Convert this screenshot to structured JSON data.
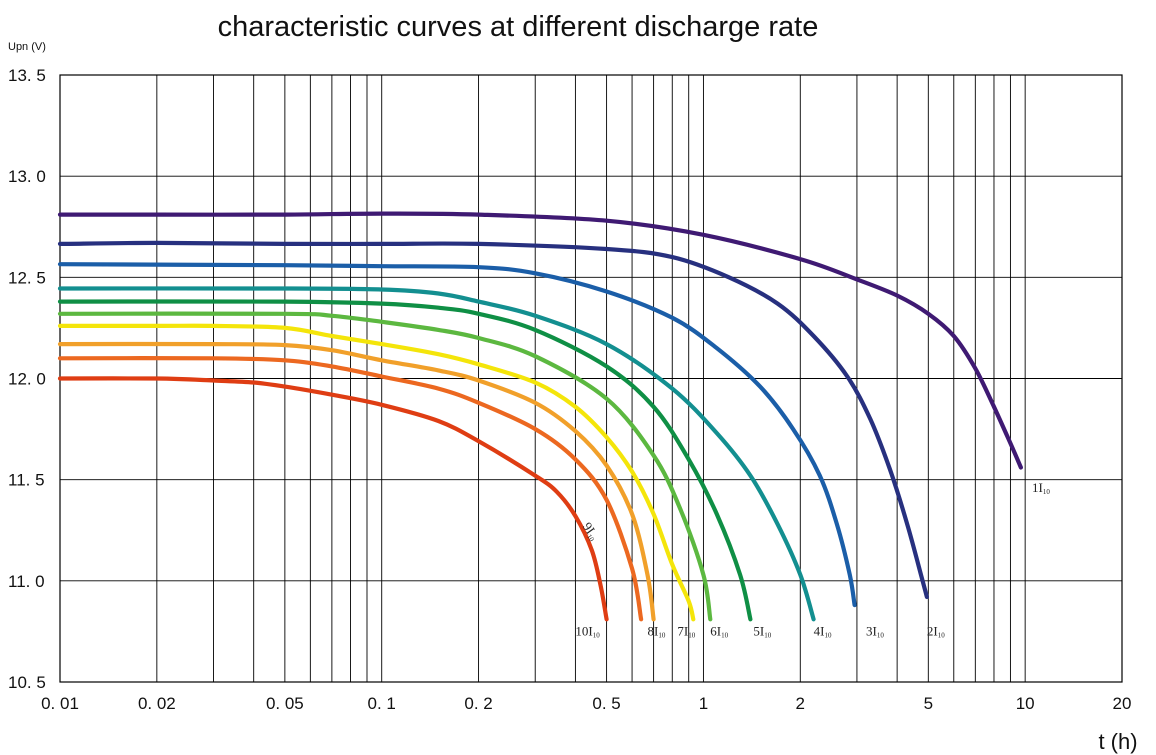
{
  "chart_data": {
    "type": "line",
    "title": "characteristic curves at different discharge rate",
    "ylabel": "Upn (V)",
    "xlabel": "t (h)",
    "x_scale": "log",
    "xlim": [
      0.01,
      20
    ],
    "ylim": [
      10.5,
      13.5
    ],
    "x_ticks": [
      0.01,
      0.02,
      0.05,
      0.1,
      0.2,
      0.5,
      1,
      2,
      5,
      10,
      20
    ],
    "x_tick_labels": [
      "0. 01",
      "0. 02",
      "0. 05",
      "0. 1",
      "0. 2",
      "0. 5",
      "1",
      "2",
      "5",
      "10",
      "20"
    ],
    "y_ticks": [
      10.5,
      11.0,
      11.5,
      12.0,
      12.5,
      13.0,
      13.5
    ],
    "y_tick_labels": [
      "10. 5",
      "11. 0",
      "11. 5",
      "12. 0",
      "12. 5",
      "13. 0",
      "13. 5"
    ],
    "grid": true,
    "series": [
      {
        "name": "1I10",
        "color": "#3f1a73",
        "label_pos": [
          10.5,
          11.44
        ],
        "points": [
          [
            0.01,
            12.81
          ],
          [
            0.02,
            12.81
          ],
          [
            0.05,
            12.81
          ],
          [
            0.1,
            12.815
          ],
          [
            0.2,
            12.81
          ],
          [
            0.5,
            12.78
          ],
          [
            1,
            12.71
          ],
          [
            2,
            12.59
          ],
          [
            3,
            12.49
          ],
          [
            4,
            12.41
          ],
          [
            5,
            12.32
          ],
          [
            6,
            12.21
          ],
          [
            7,
            12.05
          ],
          [
            8,
            11.86
          ],
          [
            9,
            11.68
          ],
          [
            9.7,
            11.56
          ]
        ]
      },
      {
        "name": "2I10",
        "color": "#27307f",
        "label_pos": [
          4.95,
          10.73
        ],
        "points": [
          [
            0.01,
            12.665
          ],
          [
            0.02,
            12.67
          ],
          [
            0.05,
            12.665
          ],
          [
            0.1,
            12.665
          ],
          [
            0.2,
            12.665
          ],
          [
            0.5,
            12.64
          ],
          [
            0.8,
            12.6
          ],
          [
            1.2,
            12.5
          ],
          [
            1.7,
            12.37
          ],
          [
            2.2,
            12.21
          ],
          [
            2.8,
            12.01
          ],
          [
            3.3,
            11.8
          ],
          [
            3.8,
            11.55
          ],
          [
            4.3,
            11.28
          ],
          [
            4.8,
            11.0
          ],
          [
            4.95,
            10.92
          ]
        ]
      },
      {
        "name": "3I10",
        "color": "#1b5ea8",
        "label_pos": [
          3.2,
          10.73
        ],
        "points": [
          [
            0.01,
            12.565
          ],
          [
            0.05,
            12.56
          ],
          [
            0.1,
            12.555
          ],
          [
            0.2,
            12.55
          ],
          [
            0.3,
            12.52
          ],
          [
            0.5,
            12.43
          ],
          [
            0.8,
            12.3
          ],
          [
            1.1,
            12.15
          ],
          [
            1.5,
            11.96
          ],
          [
            1.9,
            11.75
          ],
          [
            2.3,
            11.52
          ],
          [
            2.6,
            11.28
          ],
          [
            2.85,
            11.03
          ],
          [
            2.95,
            10.88
          ]
        ]
      },
      {
        "name": "4I10",
        "color": "#138f90",
        "label_pos": [
          2.2,
          10.73
        ],
        "points": [
          [
            0.01,
            12.445
          ],
          [
            0.05,
            12.445
          ],
          [
            0.1,
            12.44
          ],
          [
            0.15,
            12.42
          ],
          [
            0.2,
            12.38
          ],
          [
            0.3,
            12.31
          ],
          [
            0.5,
            12.17
          ],
          [
            0.8,
            11.95
          ],
          [
            1.1,
            11.73
          ],
          [
            1.4,
            11.52
          ],
          [
            1.7,
            11.28
          ],
          [
            2.0,
            11.03
          ],
          [
            2.2,
            10.81
          ]
        ]
      },
      {
        "name": "5I10",
        "color": "#0f8f45",
        "label_pos": [
          1.43,
          10.73
        ],
        "points": [
          [
            0.01,
            12.38
          ],
          [
            0.05,
            12.38
          ],
          [
            0.1,
            12.37
          ],
          [
            0.15,
            12.35
          ],
          [
            0.2,
            12.32
          ],
          [
            0.3,
            12.24
          ],
          [
            0.5,
            12.06
          ],
          [
            0.7,
            11.86
          ],
          [
            0.9,
            11.6
          ],
          [
            1.1,
            11.33
          ],
          [
            1.3,
            11.03
          ],
          [
            1.4,
            10.81
          ]
        ]
      },
      {
        "name": "6I10",
        "color": "#5cb840",
        "label_pos": [
          1.05,
          10.73
        ],
        "points": [
          [
            0.01,
            12.32
          ],
          [
            0.05,
            12.32
          ],
          [
            0.07,
            12.31
          ],
          [
            0.1,
            12.28
          ],
          [
            0.15,
            12.24
          ],
          [
            0.2,
            12.2
          ],
          [
            0.3,
            12.11
          ],
          [
            0.5,
            11.9
          ],
          [
            0.7,
            11.62
          ],
          [
            0.85,
            11.35
          ],
          [
            1.0,
            11.03
          ],
          [
            1.05,
            10.81
          ]
        ]
      },
      {
        "name": "7I10",
        "color": "#f4e50a",
        "label_pos": [
          0.83,
          10.73
        ],
        "points": [
          [
            0.01,
            12.26
          ],
          [
            0.02,
            12.26
          ],
          [
            0.03,
            12.26
          ],
          [
            0.05,
            12.25
          ],
          [
            0.07,
            12.21
          ],
          [
            0.1,
            12.17
          ],
          [
            0.15,
            12.12
          ],
          [
            0.2,
            12.07
          ],
          [
            0.3,
            11.98
          ],
          [
            0.4,
            11.86
          ],
          [
            0.5,
            11.71
          ],
          [
            0.6,
            11.54
          ],
          [
            0.7,
            11.33
          ],
          [
            0.8,
            11.08
          ],
          [
            0.9,
            10.9
          ],
          [
            0.93,
            10.81
          ]
        ]
      },
      {
        "name": "8I10",
        "color": "#f1a02a",
        "label_pos": [
          0.67,
          10.73
        ],
        "points": [
          [
            0.01,
            12.17
          ],
          [
            0.03,
            12.17
          ],
          [
            0.05,
            12.165
          ],
          [
            0.07,
            12.14
          ],
          [
            0.1,
            12.09
          ],
          [
            0.15,
            12.04
          ],
          [
            0.2,
            11.99
          ],
          [
            0.3,
            11.88
          ],
          [
            0.4,
            11.74
          ],
          [
            0.5,
            11.57
          ],
          [
            0.6,
            11.33
          ],
          [
            0.67,
            11.03
          ],
          [
            0.7,
            10.81
          ]
        ]
      },
      {
        "name": "9I10",
        "color": "#ec6820",
        "label_pos": [
          0.42,
          11.27
        ],
        "points": [
          [
            0.01,
            12.1
          ],
          [
            0.03,
            12.1
          ],
          [
            0.05,
            12.09
          ],
          [
            0.07,
            12.06
          ],
          [
            0.1,
            12.01
          ],
          [
            0.15,
            11.95
          ],
          [
            0.2,
            11.88
          ],
          [
            0.3,
            11.75
          ],
          [
            0.4,
            11.6
          ],
          [
            0.5,
            11.4
          ],
          [
            0.6,
            11.06
          ],
          [
            0.64,
            10.81
          ]
        ]
      },
      {
        "name": "10I10",
        "color": "#df3d13",
        "label_pos": [
          0.4,
          10.73
        ],
        "points": [
          [
            0.01,
            12.0
          ],
          [
            0.02,
            12.0
          ],
          [
            0.03,
            11.99
          ],
          [
            0.04,
            11.98
          ],
          [
            0.05,
            11.96
          ],
          [
            0.07,
            11.92
          ],
          [
            0.1,
            11.87
          ],
          [
            0.15,
            11.79
          ],
          [
            0.2,
            11.69
          ],
          [
            0.3,
            11.52
          ],
          [
            0.35,
            11.44
          ],
          [
            0.4,
            11.32
          ],
          [
            0.45,
            11.15
          ],
          [
            0.48,
            10.97
          ],
          [
            0.5,
            10.81
          ]
        ]
      }
    ]
  }
}
